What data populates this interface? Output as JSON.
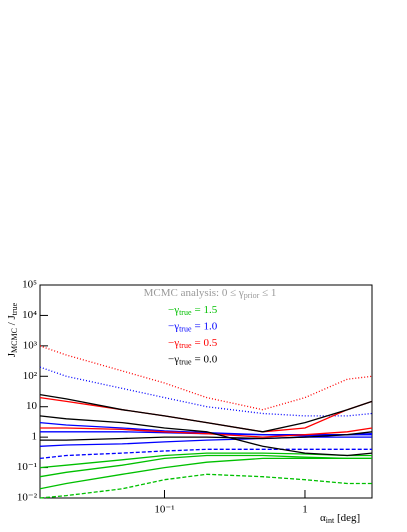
{
  "chart_data": {
    "type": "line",
    "annotation": {
      "text": "MCMC analysis: 0 ≤ γ",
      "sub": "prior",
      "tail": " ≤ 1"
    },
    "ylabel": {
      "j1": "J",
      "sub1": "MCMC",
      "mid": " / J",
      "sub2": "true"
    },
    "xlabel": {
      "main": "α",
      "sub": "int",
      "tail": "  [deg]"
    },
    "legend_sub": "true",
    "x": [
      0.013,
      0.02,
      0.05,
      0.1,
      0.2,
      0.5,
      1,
      2,
      3
    ],
    "xlim": [
      0.013,
      3
    ],
    "ylim": [
      0.01,
      100000
    ],
    "xlog": true,
    "ylog": true,
    "xticks": [
      {
        "value": 0.1,
        "label": "10⁻¹"
      },
      1
    ],
    "yticks": [
      {
        "value": 0.01,
        "label": "10⁻²"
      },
      {
        "value": 0.1,
        "label": "10⁻¹"
      },
      1,
      10,
      {
        "value": 100,
        "label": "10²"
      },
      {
        "value": 1000,
        "label": "10³"
      },
      {
        "value": 10000,
        "label": "10⁴"
      },
      {
        "value": 100000,
        "label": "10⁵"
      }
    ],
    "series": [
      {
        "name": "−γ",
        "label": "= 1.5",
        "color": "#00c000",
        "styles": [
          "solid",
          "solid",
          "dashed",
          "solid"
        ],
        "curves": [
          [
            0.02,
            0.03,
            0.06,
            0.1,
            0.15,
            0.2,
            0.2,
            0.2,
            0.2
          ],
          [
            0.1,
            0.12,
            0.18,
            0.25,
            0.3,
            0.3,
            0.28,
            0.25,
            0.25
          ],
          [
            0.01,
            0.012,
            0.02,
            0.04,
            0.06,
            0.05,
            0.04,
            0.03,
            0.03
          ],
          [
            0.05,
            0.07,
            0.12,
            0.2,
            0.25,
            0.25,
            0.22,
            0.2,
            0.2
          ]
        ]
      },
      {
        "name": "−γ",
        "label": "= 1.0",
        "color": "#0000ff",
        "styles": [
          "solid",
          "dotted",
          "solid",
          "dashed",
          "solid"
        ],
        "curves": [
          [
            3,
            2.5,
            2,
            1.6,
            1.4,
            1.2,
            1.1,
            1.2,
            1.3
          ],
          [
            200,
            100,
            40,
            20,
            10,
            6,
            5,
            5,
            6
          ],
          [
            0.5,
            0.55,
            0.6,
            0.7,
            0.8,
            0.9,
            1,
            1,
            1
          ],
          [
            0.2,
            0.25,
            0.3,
            0.35,
            0.4,
            0.4,
            0.4,
            0.4,
            0.4
          ],
          [
            1.5,
            1.5,
            1.5,
            1.4,
            1.3,
            1.2,
            1.2,
            1.2,
            1.2
          ]
        ]
      },
      {
        "name": "−γ",
        "label": "= 0.5",
        "color": "#ff0000",
        "styles": [
          "dotted",
          "solid",
          "solid"
        ],
        "curves": [
          [
            1000,
            500,
            150,
            60,
            20,
            8,
            20,
            80,
            100
          ],
          [
            20,
            15,
            8,
            5,
            3,
            1.5,
            2,
            8,
            15
          ],
          [
            2,
            2,
            1.8,
            1.5,
            1.3,
            1,
            1.2,
            1.5,
            2
          ]
        ]
      },
      {
        "name": "−γ",
        "label": "= 0.0",
        "color": "#000000",
        "styles": [
          "solid",
          "solid",
          "solid"
        ],
        "curves": [
          [
            25,
            18,
            8,
            5,
            3,
            1.5,
            3,
            8,
            15
          ],
          [
            5,
            4,
            3,
            2,
            1.5,
            0.5,
            0.3,
            0.25,
            0.3
          ],
          [
            0.8,
            0.8,
            0.9,
            1,
            1,
            0.9,
            1,
            1.2,
            1.5
          ]
        ]
      }
    ]
  }
}
